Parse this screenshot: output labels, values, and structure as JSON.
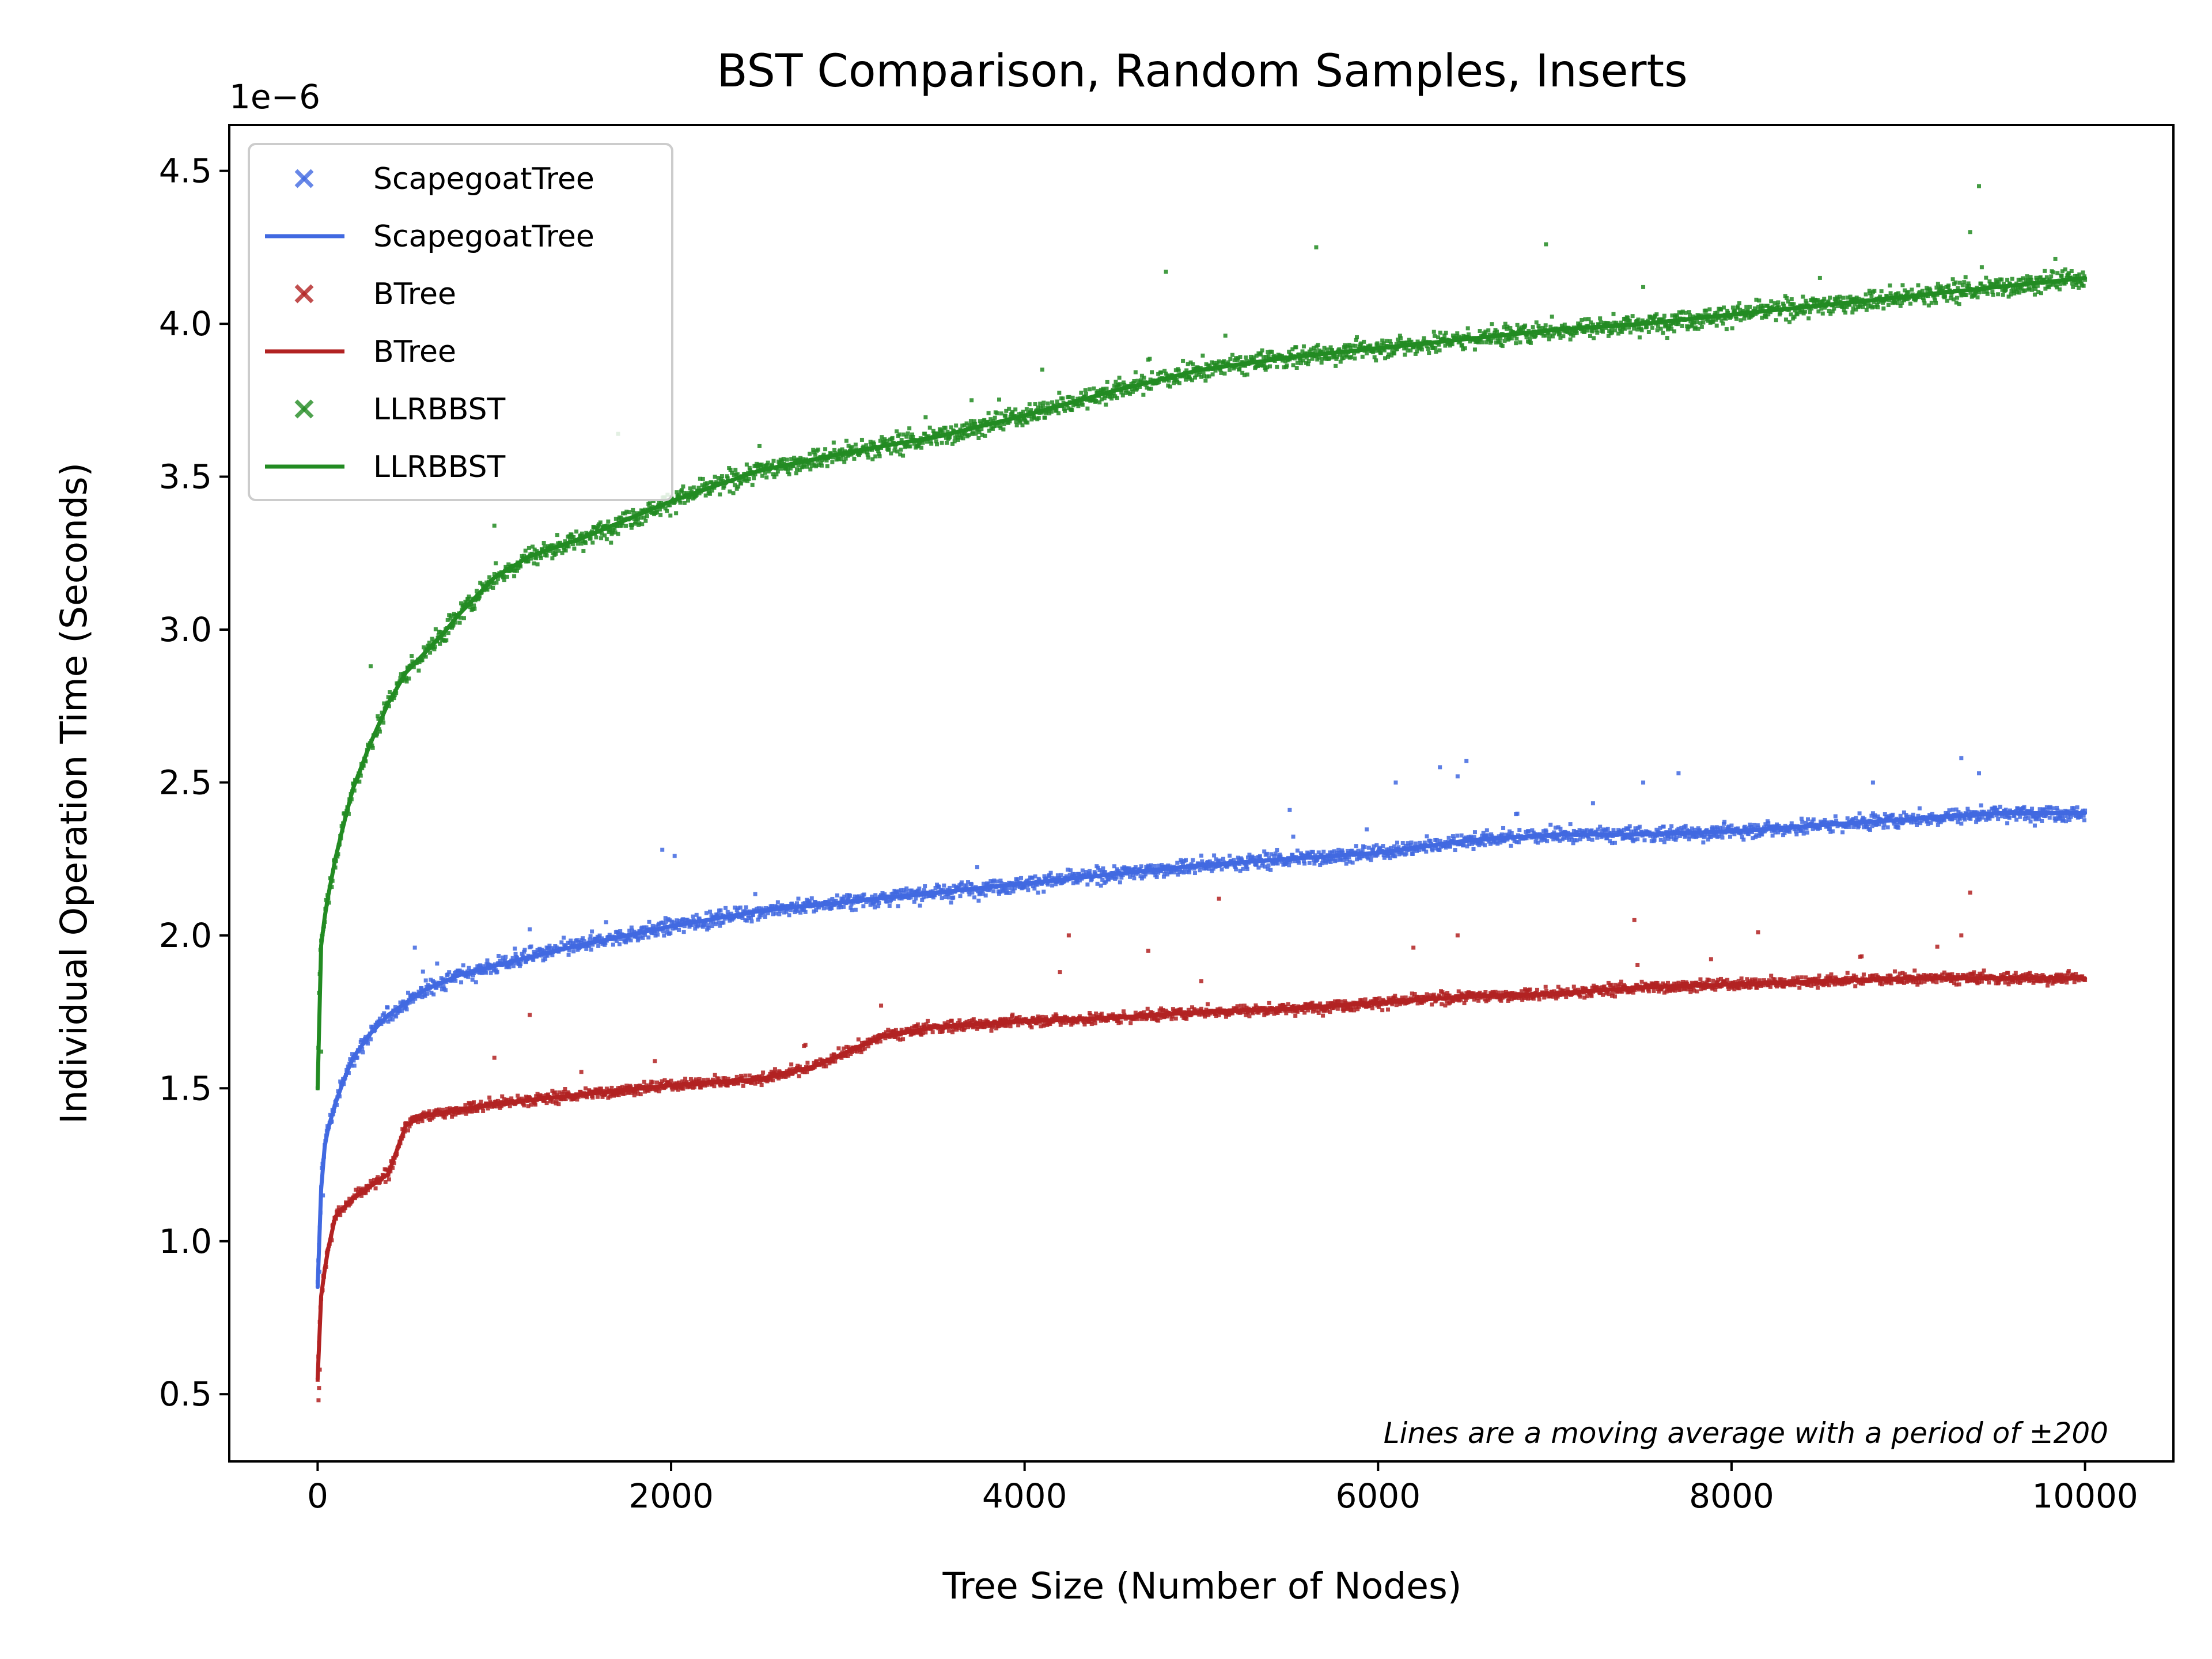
{
  "chart_data": {
    "type": "scatter",
    "title": "BST Comparison, Random Samples, Inserts",
    "xlabel": "Tree Size (Number of Nodes)",
    "ylabel": "Individual Operation Time (Seconds)",
    "y_offset_text": "1e−6",
    "xlim": [
      -500,
      10500
    ],
    "ylim": [
      0.28,
      4.65
    ],
    "x_ticks": [
      0,
      2000,
      4000,
      6000,
      8000,
      10000
    ],
    "x_tick_labels": [
      "0",
      "2000",
      "4000",
      "6000",
      "8000",
      "10000"
    ],
    "y_ticks": [
      0.5,
      1.0,
      1.5,
      2.0,
      2.5,
      3.0,
      3.5,
      4.0,
      4.5
    ],
    "y_tick_labels": [
      "0.5",
      "1.0",
      "1.5",
      "2.0",
      "2.5",
      "3.0",
      "3.5",
      "4.0",
      "4.5"
    ],
    "grid": false,
    "legend_position": "top-left",
    "annotation": "Lines are a moving average with a period of ±200",
    "series": [
      {
        "name": "ScapegoatTree",
        "color": "#4169e1",
        "marker": "x",
        "noise": 0.03,
        "avg_x": [
          0,
          25,
          50,
          100,
          150,
          200,
          300,
          400,
          500,
          600,
          800,
          1000,
          1200,
          1500,
          2000,
          2500,
          3000,
          3500,
          4000,
          4500,
          5000,
          5500,
          6000,
          6500,
          7000,
          7500,
          8000,
          8500,
          9000,
          9500,
          10000
        ],
        "avg_y": [
          0.85,
          1.25,
          1.35,
          1.45,
          1.53,
          1.6,
          1.68,
          1.74,
          1.78,
          1.82,
          1.87,
          1.9,
          1.93,
          1.97,
          2.03,
          2.08,
          2.11,
          2.14,
          2.17,
          2.2,
          2.23,
          2.25,
          2.27,
          2.31,
          2.33,
          2.33,
          2.34,
          2.36,
          2.38,
          2.4,
          2.4
        ],
        "outliers": [
          [
            10,
            0.9
          ],
          [
            30,
            1.15
          ],
          [
            550,
            1.96
          ],
          [
            1950,
            2.28
          ],
          [
            2020,
            2.26
          ],
          [
            1200,
            2.02
          ],
          [
            6350,
            2.55
          ],
          [
            6500,
            2.57
          ],
          [
            6450,
            2.52
          ],
          [
            5500,
            2.41
          ],
          [
            7500,
            2.5
          ],
          [
            7700,
            2.53
          ],
          [
            9300,
            2.58
          ],
          [
            9400,
            2.53
          ],
          [
            6100,
            2.5
          ],
          [
            8800,
            2.5
          ]
        ]
      },
      {
        "name": "BTree",
        "color": "#b22222",
        "marker": "x",
        "noise": 0.022,
        "avg_x": [
          0,
          10,
          20,
          50,
          100,
          200,
          300,
          400,
          450,
          500,
          600,
          800,
          1000,
          1500,
          2000,
          2500,
          2800,
          3000,
          3200,
          3500,
          4000,
          4500,
          5000,
          5500,
          6000,
          6500,
          7000,
          7500,
          8000,
          8500,
          9000,
          9500,
          10000
        ],
        "avg_y": [
          0.55,
          0.7,
          0.82,
          0.95,
          1.08,
          1.14,
          1.18,
          1.22,
          1.3,
          1.38,
          1.41,
          1.43,
          1.45,
          1.48,
          1.51,
          1.53,
          1.57,
          1.62,
          1.67,
          1.7,
          1.72,
          1.73,
          1.75,
          1.76,
          1.78,
          1.8,
          1.81,
          1.83,
          1.84,
          1.85,
          1.86,
          1.86,
          1.86
        ],
        "outliers": [
          [
            5,
            0.48
          ],
          [
            8,
            0.52
          ],
          [
            12,
            0.58
          ],
          [
            1000,
            1.6
          ],
          [
            1200,
            1.74
          ],
          [
            4250,
            2.0
          ],
          [
            4200,
            1.88
          ],
          [
            4700,
            1.95
          ],
          [
            5100,
            2.12
          ],
          [
            6200,
            1.96
          ],
          [
            6450,
            2.0
          ],
          [
            7450,
            2.05
          ],
          [
            8150,
            2.01
          ],
          [
            9300,
            2.0
          ],
          [
            9350,
            2.14
          ],
          [
            5000,
            1.85
          ]
        ]
      },
      {
        "name": "LLRBBST",
        "color": "#228b22",
        "marker": "x",
        "noise": 0.04,
        "avg_x": [
          0,
          10,
          25,
          50,
          100,
          150,
          200,
          300,
          400,
          500,
          600,
          700,
          800,
          900,
          1000,
          1200,
          1500,
          2000,
          2500,
          3000,
          3500,
          4000,
          4500,
          5000,
          5500,
          6000,
          6500,
          7000,
          7500,
          8000,
          8500,
          9000,
          9500,
          10000
        ],
        "avg_y": [
          1.5,
          1.9,
          2.0,
          2.1,
          2.25,
          2.37,
          2.48,
          2.63,
          2.76,
          2.86,
          2.92,
          2.98,
          3.05,
          3.11,
          3.17,
          3.24,
          3.3,
          3.42,
          3.52,
          3.58,
          3.63,
          3.7,
          3.78,
          3.85,
          3.89,
          3.92,
          3.95,
          3.98,
          4.0,
          4.03,
          4.06,
          4.09,
          4.12,
          4.15
        ],
        "outliers": [
          [
            15,
            1.88
          ],
          [
            20,
            1.62
          ],
          [
            1700,
            3.64
          ],
          [
            4800,
            4.17
          ],
          [
            5650,
            4.25
          ],
          [
            6950,
            4.26
          ],
          [
            9400,
            4.45
          ],
          [
            9350,
            4.3
          ],
          [
            300,
            2.88
          ],
          [
            2500,
            3.6
          ],
          [
            4100,
            3.85
          ],
          [
            7500,
            4.12
          ],
          [
            8500,
            4.15
          ],
          [
            3700,
            3.75
          ],
          [
            1000,
            3.34
          ]
        ]
      }
    ]
  }
}
